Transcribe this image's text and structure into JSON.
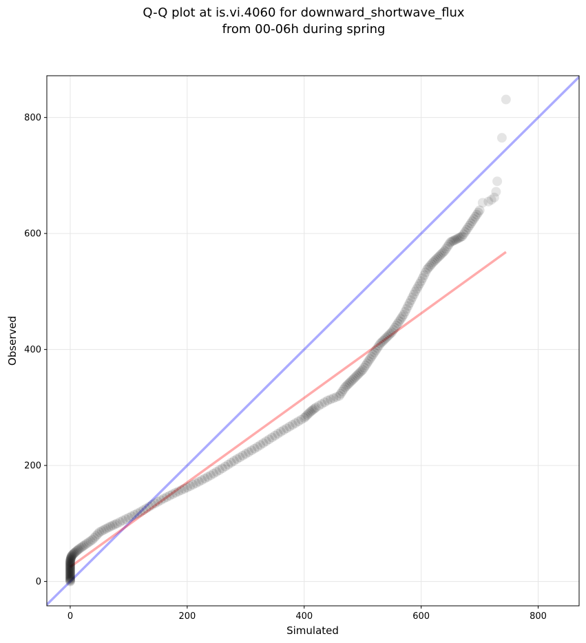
{
  "chart_data": {
    "type": "scatter",
    "title_line1": "Q-Q plot at is.vi.4060 for downward_shortwave_flux",
    "title_line2": "from 00-06h during spring",
    "xlabel": "Simulated",
    "ylabel": "Observed",
    "xlim": [
      -40,
      870
    ],
    "ylim": [
      -42,
      872
    ],
    "xticks": [
      0,
      200,
      400,
      600,
      800
    ],
    "yticks": [
      0,
      200,
      400,
      600,
      800
    ],
    "grid": true,
    "colors": {
      "points": "#000000",
      "identity_line": "#0000ff",
      "fit_line": "#ff0000",
      "grid": "#e6e6e6"
    },
    "identity_line": {
      "x": [
        -40,
        870
      ],
      "y": [
        -40,
        870
      ]
    },
    "fit_line": {
      "x": [
        0,
        745
      ],
      "y": [
        25,
        568
      ]
    },
    "quantile_curve": {
      "x": [
        0,
        0,
        0,
        0,
        0,
        0,
        0,
        0,
        1,
        3,
        8,
        15,
        25,
        38,
        50,
        65,
        80,
        100,
        120,
        140,
        160,
        180,
        200,
        220,
        240,
        260,
        280,
        300,
        320,
        340,
        360,
        380,
        400,
        410,
        420,
        440,
        460,
        470,
        480,
        490,
        500,
        510,
        520,
        530,
        540,
        550,
        560,
        570,
        580,
        590,
        600,
        610,
        620,
        630,
        640,
        650,
        660,
        670,
        680,
        690,
        700
      ],
      "y": [
        0,
        5,
        10,
        15,
        20,
        25,
        30,
        35,
        40,
        45,
        50,
        56,
        63,
        72,
        85,
        93,
        100,
        110,
        120,
        132,
        143,
        153,
        162,
        172,
        183,
        195,
        208,
        220,
        232,
        245,
        258,
        270,
        282,
        292,
        300,
        312,
        320,
        335,
        345,
        355,
        365,
        380,
        395,
        410,
        420,
        430,
        445,
        460,
        480,
        500,
        518,
        538,
        550,
        560,
        570,
        585,
        590,
        595,
        610,
        625,
        640
      ]
    },
    "outliers": {
      "x": [
        705,
        715,
        720,
        725,
        728,
        730,
        738,
        745
      ],
      "y": [
        653,
        655,
        658,
        662,
        672,
        690,
        765,
        831
      ]
    }
  }
}
